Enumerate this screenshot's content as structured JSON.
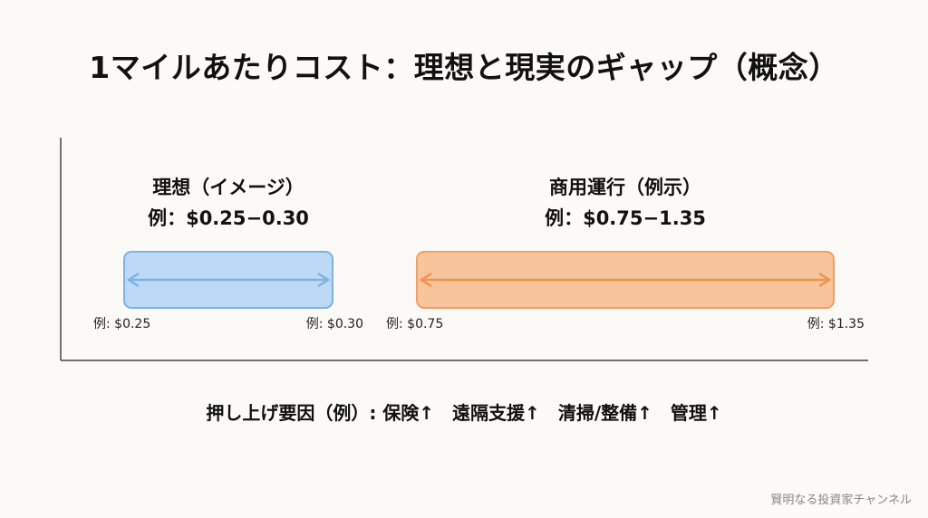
{
  "title": "1マイルあたりコスト：理想と現実のギャップ（概念）",
  "chart_data": {
    "type": "range-bar",
    "xlim": [
      0.0,
      1.4
    ],
    "groups": [
      {
        "label": "理想（イメージ）",
        "sublabel": "例：$0.25−0.30",
        "min": 0.25,
        "max": 0.3,
        "min_label": "例: $0.25",
        "max_label": "例: $0.30",
        "fill": "#bcd9f5",
        "stroke": "#7fb2e3",
        "arrow": "#7fb2e3"
      },
      {
        "label": "商用運行（例示）",
        "sublabel": "例：$0.75−1.35",
        "min": 0.75,
        "max": 1.35,
        "min_label": "例: $0.75",
        "max_label": "例: $1.35",
        "fill": "#f7c49b",
        "stroke": "#f0a066",
        "arrow": "#ee9350"
      }
    ]
  },
  "factors": "押し上げ要因（例）: 保険↑　遠隔支援↑　清掃/整備↑　管理↑",
  "watermark": "賢明なる投資家チャンネル"
}
